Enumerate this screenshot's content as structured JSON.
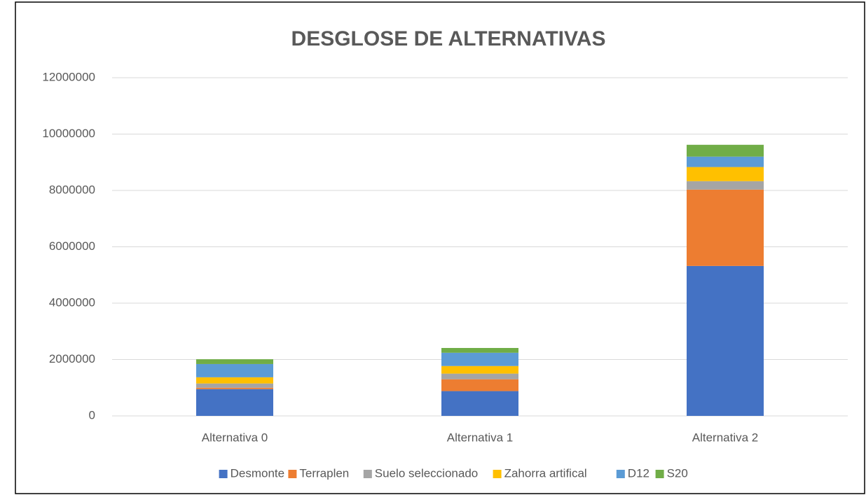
{
  "chart_data": {
    "type": "bar",
    "stacked": true,
    "title": "DESGLOSE DE ALTERNATIVAS",
    "categories": [
      "Alternativa 0",
      "Alternativa 1",
      "Alternativa 2"
    ],
    "series": [
      {
        "name": "Desmonte",
        "color": "#4472c4",
        "values": [
          950000,
          880000,
          5320000
        ]
      },
      {
        "name": "Terraplen",
        "color": "#ed7d31",
        "values": [
          50000,
          420000,
          2710000
        ]
      },
      {
        "name": "Suelo seleccionado",
        "color": "#a5a5a5",
        "values": [
          150000,
          200000,
          300000
        ]
      },
      {
        "name": "Zahorra artifical",
        "color": "#ffc000",
        "values": [
          220000,
          270000,
          500000
        ]
      },
      {
        "name": "D12",
        "color": "#5b9bd5",
        "values": [
          470000,
          470000,
          370000
        ]
      },
      {
        "name": "S20",
        "color": "#70ad47",
        "values": [
          170000,
          170000,
          420000
        ]
      }
    ],
    "ylim": [
      0,
      12000000
    ],
    "yticks": [
      0,
      2000000,
      4000000,
      6000000,
      8000000,
      10000000,
      12000000
    ],
    "grid": true,
    "legend": "bottom"
  }
}
